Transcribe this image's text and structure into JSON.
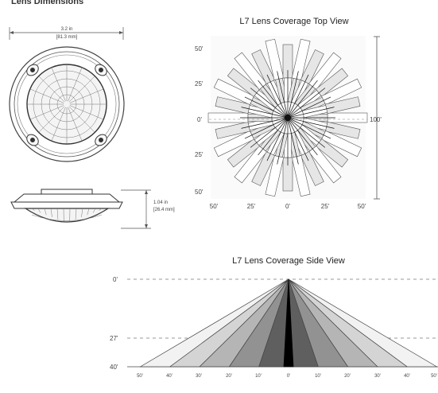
{
  "header": {
    "title": "Lens Dimensions"
  },
  "dimensions": {
    "width_in": "3.2 in",
    "width_mm": "[81.3 mm]",
    "height_in": "1.04 in",
    "height_mm": "[26.4 mm]"
  },
  "top_view": {
    "title": "L7 Lens Coverage Top View",
    "left_labels": [
      "50'",
      "25'",
      "0'",
      "25'",
      "50'"
    ],
    "bottom_labels": [
      "50'",
      "25'",
      "0'",
      "25'",
      "50'"
    ],
    "right_label": "100'",
    "lobe_count": 28
  },
  "side_view": {
    "title": "L7 Lens Coverage Side View",
    "y_labels": [
      "0'",
      "27'",
      "40'"
    ],
    "x_labels": [
      "50'",
      "40'",
      "30'",
      "20'",
      "10'",
      "0'",
      "10'",
      "20'",
      "30'",
      "40'",
      "50'"
    ],
    "beam_colors": [
      "#f2f2f2",
      "#d4d4d4",
      "#b5b5b5",
      "#929292",
      "#5f5f5f",
      "#000000"
    ]
  }
}
